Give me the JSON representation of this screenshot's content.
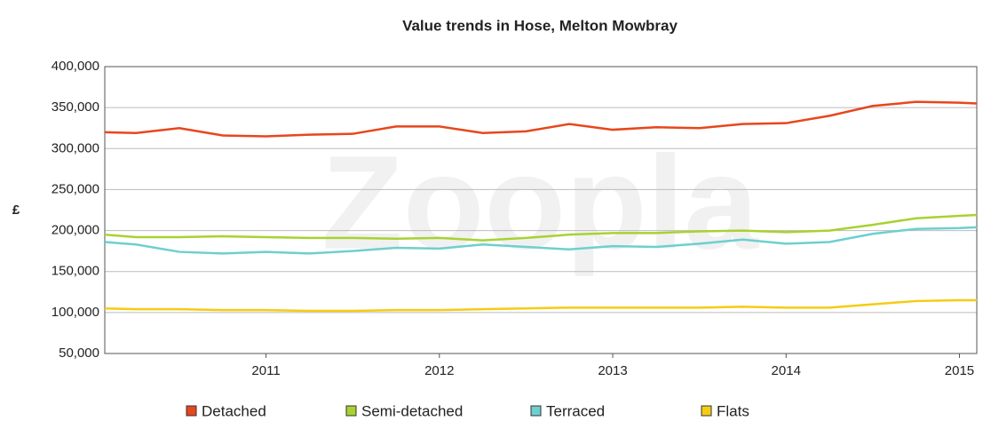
{
  "chart_data": {
    "type": "line",
    "title": "Value trends in Hose, Melton Mowbray",
    "y_label": "£",
    "watermark": "Zoopla",
    "x": [
      2010.07,
      2010.25,
      2010.5,
      2010.75,
      2011,
      2011.25,
      2011.5,
      2011.75,
      2012,
      2012.25,
      2012.5,
      2012.75,
      2013,
      2013.25,
      2013.5,
      2013.75,
      2014,
      2014.25,
      2014.5,
      2014.75,
      2015,
      2015.1
    ],
    "series": [
      {
        "name": "Detached",
        "color": "#e8461c",
        "values": [
          320000,
          319000,
          325000,
          316000,
          315000,
          317000,
          318000,
          327000,
          327000,
          319000,
          321000,
          330000,
          323000,
          326000,
          325000,
          330000,
          331000,
          340000,
          352000,
          357000,
          356000,
          355000
        ]
      },
      {
        "name": "Semi-detached",
        "color": "#a8d232",
        "values": [
          195000,
          192000,
          192000,
          193000,
          192000,
          191000,
          191000,
          190000,
          191000,
          188000,
          191000,
          195000,
          197000,
          197000,
          199000,
          200000,
          198000,
          200000,
          207000,
          215000,
          218000,
          219000
        ]
      },
      {
        "name": "Terraced",
        "color": "#6ecfcf",
        "values": [
          186000,
          183000,
          174000,
          172000,
          174000,
          172000,
          175000,
          179000,
          178000,
          183000,
          180000,
          177000,
          181000,
          180000,
          184000,
          189000,
          184000,
          186000,
          196000,
          202000,
          203000,
          204000
        ]
      },
      {
        "name": "Flats",
        "color": "#f5cc14",
        "values": [
          105000,
          104000,
          104000,
          103000,
          103000,
          102000,
          102000,
          103000,
          103000,
          104000,
          105000,
          106000,
          106000,
          106000,
          106000,
          107000,
          106000,
          106000,
          110000,
          114000,
          115000,
          115000
        ]
      }
    ],
    "xlim": [
      2010.07,
      2015.1
    ],
    "xticks": [
      2011,
      2012,
      2013,
      2014,
      2015
    ],
    "ylim": [
      50000,
      400000
    ],
    "yticks": [
      {
        "value": 50000,
        "label": "50,000"
      },
      {
        "value": 100000,
        "label": "100,000"
      },
      {
        "value": 150000,
        "label": "150,000"
      },
      {
        "value": 200000,
        "label": "200,000"
      },
      {
        "value": 250000,
        "label": "250,000"
      },
      {
        "value": 300000,
        "label": "300,000"
      },
      {
        "value": 350000,
        "label": "350,000"
      },
      {
        "value": 400000,
        "label": "400,000"
      }
    ],
    "grid": true,
    "legend": "bottom"
  }
}
